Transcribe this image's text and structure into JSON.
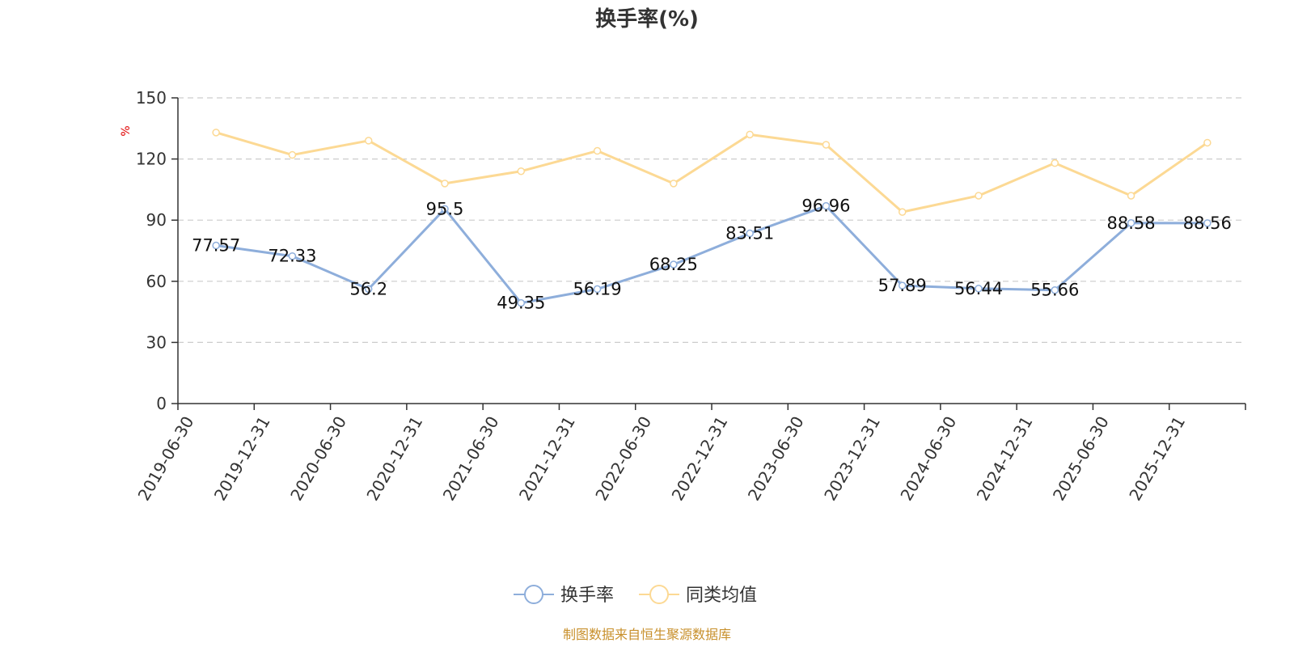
{
  "chart_data": {
    "type": "line",
    "title": "换手率(%)",
    "ylabel": "%",
    "ylim": [
      0,
      150
    ],
    "yticks": [
      0,
      30,
      60,
      90,
      120,
      150
    ],
    "grid": true,
    "legend_position": "bottom-center",
    "categories": [
      "2019-06-30",
      "2019-12-31",
      "2020-06-30",
      "2020-12-31",
      "2021-06-30",
      "2021-12-31",
      "2022-06-30",
      "2022-12-31",
      "2023-06-30",
      "2023-12-31",
      "2024-06-30",
      "2024-12-31",
      "2025-06-30",
      "2025-12-31"
    ],
    "series": [
      {
        "name": "换手率",
        "color": "#8eaedb",
        "show_labels": true,
        "values": [
          77.57,
          72.33,
          56.2,
          95.5,
          49.35,
          56.19,
          68.25,
          83.51,
          96.96,
          57.89,
          56.44,
          55.66,
          88.58,
          88.56
        ]
      },
      {
        "name": "同类均值",
        "color": "#fcd994",
        "show_labels": false,
        "values": [
          133,
          122,
          129,
          108,
          114,
          124,
          108,
          132,
          127,
          94,
          102,
          118,
          102,
          128
        ]
      }
    ],
    "source": "制图数据来自恒生聚源数据库"
  }
}
